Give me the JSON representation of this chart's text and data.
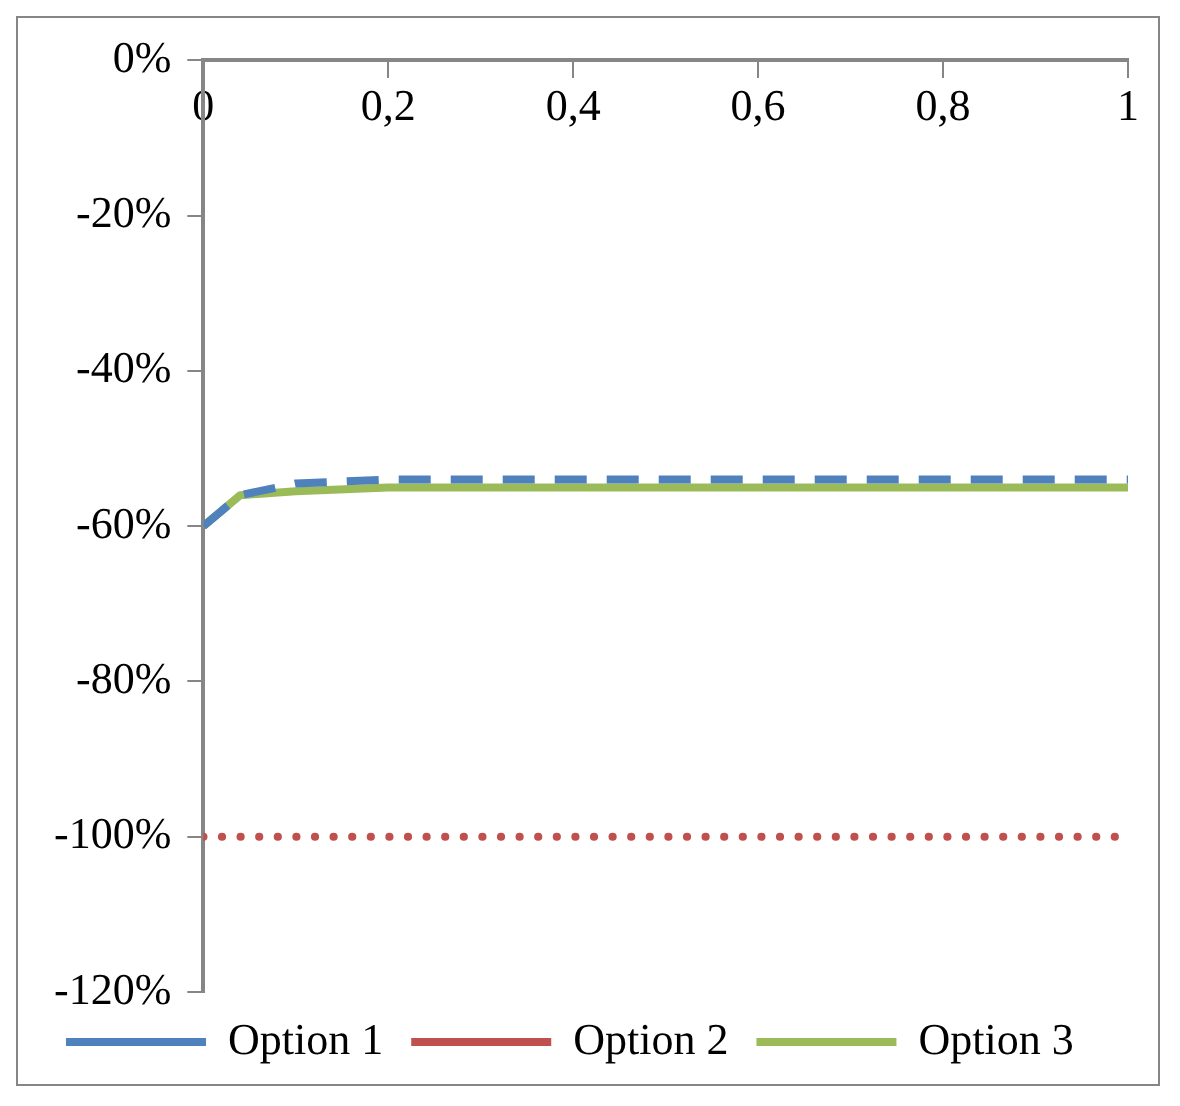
{
  "chart_data": {
    "type": "line",
    "xlim": [
      0,
      1
    ],
    "xticks": [
      0,
      {
        "value": 0.2,
        "label": "0,2"
      },
      {
        "value": 0.4,
        "label": "0,4"
      },
      {
        "value": 0.6,
        "label": "0,6"
      },
      {
        "value": 0.8,
        "label": "0,8"
      },
      1
    ],
    "ylim": [
      -120,
      0
    ],
    "yticks": [
      {
        "value": -120,
        "label": "-120%"
      },
      {
        "value": -100,
        "label": "-100%"
      },
      {
        "value": -80,
        "label": "-80%"
      },
      {
        "value": -60,
        "label": "-60%"
      },
      {
        "value": -40,
        "label": "-40%"
      },
      {
        "value": -20,
        "label": "-20%"
      },
      {
        "value": 0,
        "label": "0%"
      }
    ],
    "grid": false,
    "legend": "bottom",
    "marker": "none",
    "series": [
      {
        "name": "Option 1",
        "color": "#4f81bd",
        "line_style": "dashed",
        "x": [
          0,
          0.04,
          0.1,
          0.2,
          0.4,
          0.6,
          0.8,
          1
        ],
        "values": [
          -60,
          -56,
          -54.5,
          -54,
          -54,
          -54,
          -54,
          -54
        ]
      },
      {
        "name": "Option 2",
        "color": "#c0504d",
        "line_style": "dotted",
        "x": [
          0,
          0.2,
          0.4,
          0.6,
          0.8,
          1
        ],
        "values": [
          -100,
          -100,
          -100,
          -100,
          -100,
          -100
        ]
      },
      {
        "name": "Option 3",
        "color": "#9bbb59",
        "line_style": "solid",
        "x": [
          0,
          0.04,
          0.1,
          0.2,
          0.4,
          0.6,
          0.8,
          1
        ],
        "values": [
          -60,
          -56,
          -55.5,
          -55,
          -55,
          -55,
          -55,
          -55
        ]
      }
    ]
  }
}
